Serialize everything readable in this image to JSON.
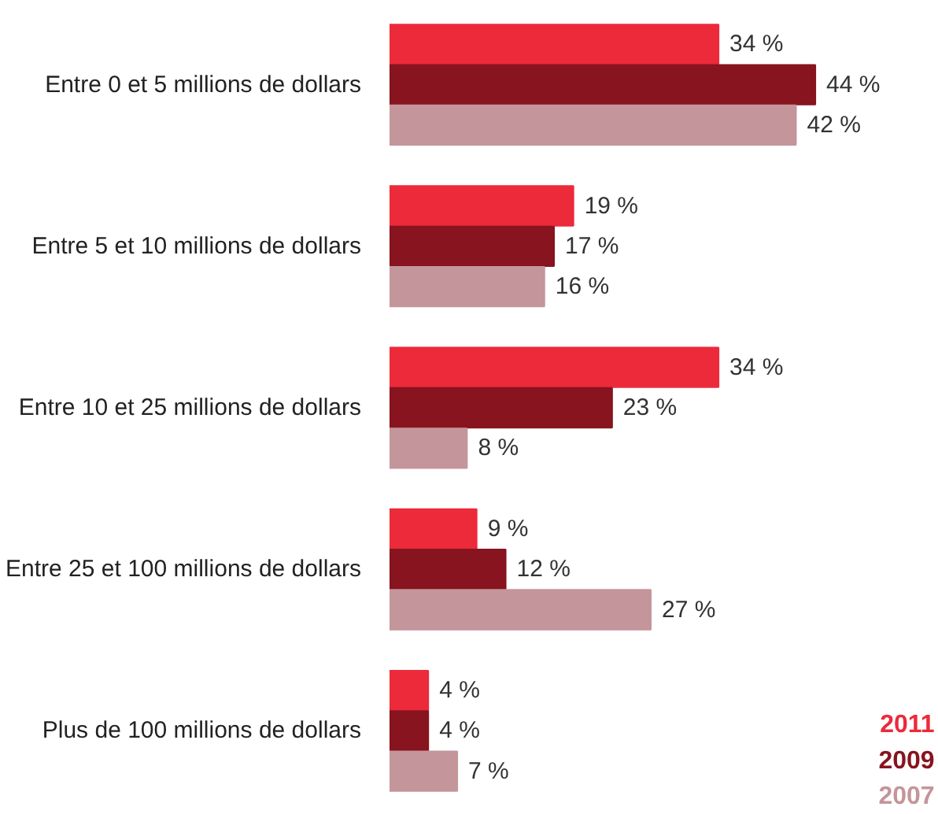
{
  "chart_data": {
    "type": "bar",
    "orientation": "horizontal",
    "legend": "bottom right",
    "categories": [
      "Entre 0 et 5 millions de dollars",
      "Entre 5 et 10 millions de dollars",
      "Entre 10 et 25 millions de dollars",
      "Entre 25 et 100 millions de dollars",
      "Plus de 100 millions de dollars"
    ],
    "series": [
      {
        "name": "2011",
        "color": "#ec2a3a",
        "values": [
          34,
          19,
          34,
          9,
          4
        ],
        "value_labels": [
          "34 %",
          "19 %",
          "34 %",
          "9 %",
          "4 %"
        ]
      },
      {
        "name": "2009",
        "color": "#87141f",
        "values": [
          44,
          17,
          23,
          12,
          4
        ],
        "value_labels": [
          "44 %",
          "17 %",
          "23 %",
          "12 %",
          "4 %"
        ]
      },
      {
        "name": "2007",
        "color": "#c4959b",
        "values": [
          42,
          16,
          8,
          27,
          7
        ],
        "value_labels": [
          "42 %",
          "16 %",
          "8 %",
          "27 %",
          "7 %"
        ]
      }
    ]
  }
}
